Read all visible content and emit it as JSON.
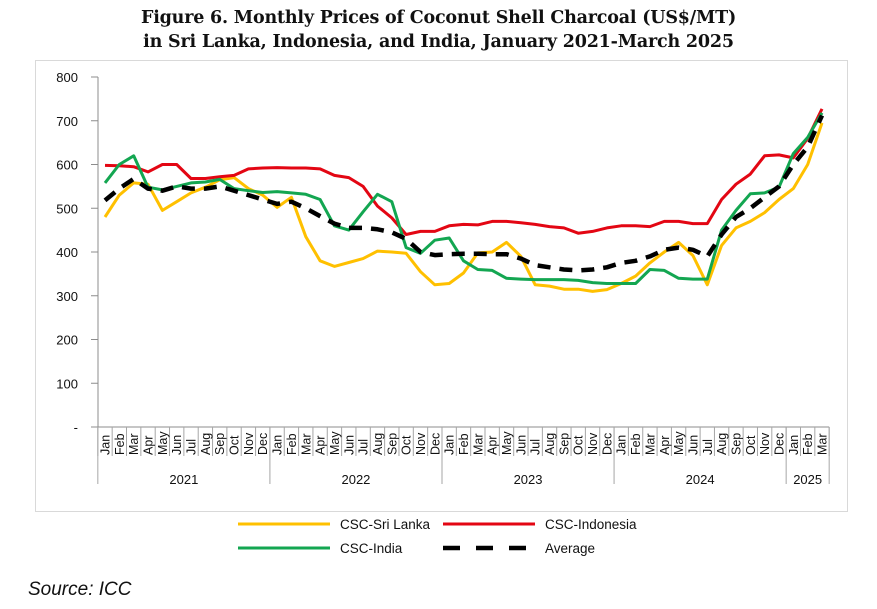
{
  "figure": {
    "title_line1": "Figure 6. Monthly Prices of Coconut Shell Charcoal (US$/MT)",
    "title_line2": "in Sri Lanka, Indonesia, and India, January 2021-March 2025",
    "source": "Source: ICC"
  },
  "chart_data": {
    "type": "line",
    "title": "Figure 6. Monthly Prices of Coconut Shell Charcoal (US$/MT) in Sri Lanka, Indonesia, and India, January 2021-March 2025",
    "xlabel": "",
    "ylabel": "",
    "ylim": [
      0,
      800
    ],
    "yticks": [
      0,
      100,
      200,
      300,
      400,
      500,
      600,
      700,
      800
    ],
    "ytick_labels": [
      "-",
      "100",
      "200",
      "300",
      "400",
      "500",
      "600",
      "700",
      "800"
    ],
    "grid": false,
    "legend_position": "bottom",
    "x_months": [
      "Jan",
      "Feb",
      "Mar",
      "Apr",
      "May",
      "Jun",
      "Jul",
      "Aug",
      "Sep",
      "Oct",
      "Nov",
      "Dec",
      "Jan",
      "Feb",
      "Mar",
      "Apr",
      "May",
      "Jun",
      "Jul",
      "Aug",
      "Sep",
      "Oct",
      "Nov",
      "Dec",
      "Jan",
      "Feb",
      "Mar",
      "Apr",
      "May",
      "Jun",
      "Jul",
      "Aug",
      "Sep",
      "Oct",
      "Nov",
      "Dec",
      "Jan",
      "Feb",
      "Mar",
      "Apr",
      "May",
      "Jun",
      "Jul",
      "Aug",
      "Sep",
      "Oct",
      "Nov",
      "Dec",
      "Jan",
      "Feb",
      "Mar"
    ],
    "x_years": [
      {
        "label": "2021",
        "start": 0,
        "count": 12
      },
      {
        "label": "2022",
        "start": 12,
        "count": 12
      },
      {
        "label": "2023",
        "start": 24,
        "count": 12
      },
      {
        "label": "2024",
        "start": 36,
        "count": 12
      },
      {
        "label": "2025",
        "start": 48,
        "count": 3
      }
    ],
    "series": [
      {
        "name": "CSC-Sri Lanka",
        "color": "#FFC000",
        "dash": false,
        "values": [
          480,
          530,
          558,
          555,
          495,
          515,
          535,
          548,
          565,
          570,
          545,
          530,
          502,
          525,
          435,
          380,
          367,
          376,
          385,
          402,
          400,
          397,
          355,
          325,
          328,
          352,
          398,
          400,
          422,
          390,
          325,
          322,
          315,
          315,
          310,
          314,
          328,
          345,
          375,
          400,
          422,
          392,
          325,
          415,
          455,
          470,
          490,
          520,
          545,
          600,
          695
        ]
      },
      {
        "name": "CSC-Indonesia",
        "color": "#E30613",
        "dash": false,
        "values": [
          598,
          597,
          595,
          583,
          600,
          600,
          568,
          568,
          572,
          575,
          590,
          592,
          593,
          592,
          592,
          590,
          575,
          570,
          550,
          505,
          478,
          440,
          447,
          447,
          460,
          463,
          462,
          470,
          470,
          467,
          463,
          458,
          455,
          443,
          447,
          455,
          460,
          460,
          458,
          470,
          470,
          465,
          465,
          520,
          555,
          578,
          620,
          622,
          615,
          660,
          727
        ]
      },
      {
        "name": "CSC-India",
        "color": "#13A651",
        "dash": false,
        "values": [
          558,
          600,
          620,
          548,
          542,
          550,
          558,
          560,
          566,
          545,
          540,
          536,
          538,
          535,
          532,
          520,
          460,
          450,
          492,
          532,
          515,
          410,
          397,
          427,
          432,
          380,
          360,
          358,
          340,
          338,
          337,
          337,
          337,
          335,
          330,
          328,
          328,
          328,
          360,
          358,
          340,
          338,
          338,
          450,
          495,
          533,
          535,
          548,
          625,
          662,
          718
        ]
      },
      {
        "name": "Average",
        "color": "#000000",
        "dash": true,
        "values": [
          518,
          545,
          567,
          545,
          540,
          550,
          545,
          545,
          550,
          540,
          530,
          520,
          510,
          515,
          500,
          482,
          465,
          455,
          455,
          452,
          445,
          430,
          400,
          393,
          395,
          396,
          396,
          395,
          395,
          385,
          370,
          365,
          360,
          358,
          360,
          365,
          375,
          380,
          390,
          405,
          410,
          405,
          390,
          440,
          480,
          500,
          525,
          550,
          600,
          640,
          712
        ]
      }
    ]
  },
  "legend": {
    "items": [
      {
        "label": "CSC-Sri Lanka",
        "color": "#FFC000",
        "dash": false
      },
      {
        "label": "CSC-Indonesia",
        "color": "#E30613",
        "dash": false
      },
      {
        "label": "CSC-India",
        "color": "#13A651",
        "dash": false
      },
      {
        "label": "Average",
        "color": "#000000",
        "dash": true
      }
    ]
  }
}
